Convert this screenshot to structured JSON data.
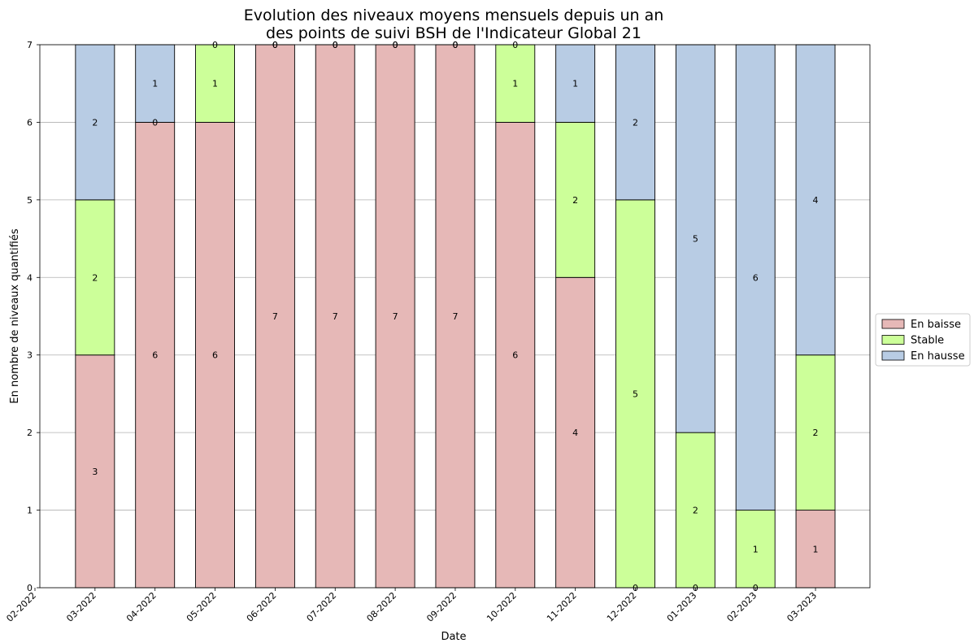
{
  "chart_data": {
    "type": "bar",
    "stacked": true,
    "title": [
      "Evolution des niveaux moyens mensuels depuis un an",
      "des points de suivi BSH de l'Indicateur Global 21"
    ],
    "xlabel": "Date",
    "ylabel": "En nombre de niveaux quantifiés",
    "ylim": [
      0,
      7
    ],
    "yticks": [
      0,
      1,
      2,
      3,
      4,
      5,
      6,
      7
    ],
    "grid": "horizontal",
    "legend_position": "right",
    "x_tick_labels": [
      "02-2022",
      "03-2022",
      "04-2022",
      "05-2022",
      "06-2022",
      "07-2022",
      "08-2022",
      "09-2022",
      "10-2022",
      "11-2022",
      "12-2022",
      "01-2023",
      "02-2023",
      "03-2023"
    ],
    "categories": [
      "03-2022",
      "04-2022",
      "05-2022",
      "06-2022",
      "07-2022",
      "08-2022",
      "09-2022",
      "10-2022",
      "11-2022",
      "12-2022",
      "01-2023",
      "02-2023",
      "03-2023"
    ],
    "series": [
      {
        "name": "En baisse",
        "color": "#e6b8b7",
        "values": [
          3,
          6,
          6,
          7,
          7,
          7,
          7,
          6,
          4,
          0,
          0,
          0,
          1
        ]
      },
      {
        "name": "Stable",
        "color": "#ccff99",
        "values": [
          2,
          0,
          1,
          0,
          0,
          0,
          0,
          1,
          2,
          5,
          2,
          1,
          2
        ]
      },
      {
        "name": "En hausse",
        "color": "#b8cce4",
        "values": [
          2,
          1,
          0,
          0,
          0,
          0,
          0,
          0,
          1,
          2,
          5,
          6,
          4
        ]
      }
    ]
  }
}
